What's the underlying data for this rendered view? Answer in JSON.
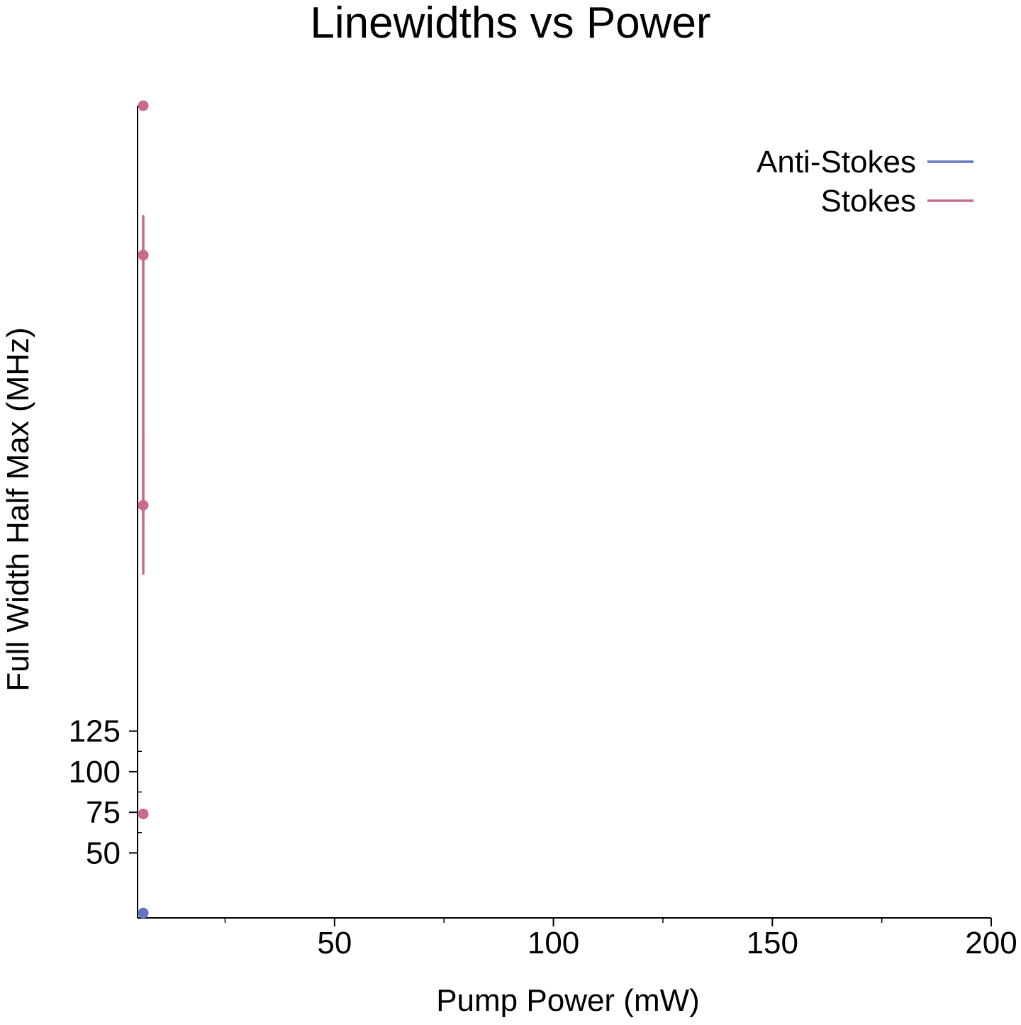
{
  "chart_data": {
    "type": "scatter",
    "title": "Linewidths vs Power",
    "xlabel": "Pump Power (mW)",
    "ylabel": "Full Width Half Max (MHz)",
    "xlim": [
      5,
      200
    ],
    "ylim": [
      10,
      510
    ],
    "x_ticks": [
      {
        "value": 50,
        "label": "50"
      },
      {
        "value": 100,
        "label": "100"
      },
      {
        "value": 150,
        "label": "150"
      },
      {
        "value": 200,
        "label": "200"
      }
    ],
    "x_minor_ticks": [
      25,
      75,
      125,
      175
    ],
    "y_ticks": [
      {
        "value": 50,
        "label": "50"
      },
      {
        "value": 75,
        "label": "75"
      },
      {
        "value": 100,
        "label": "100"
      },
      {
        "value": 125,
        "label": "125"
      }
    ],
    "y_minor_ticks": [
      62.5,
      87.5,
      112.5
    ],
    "grid": false,
    "legend_position": "top-right",
    "series": [
      {
        "name": "Anti-Stokes",
        "color": "#6574c4",
        "points": [
          {
            "x": 6.3,
            "y": 13
          }
        ]
      },
      {
        "name": "Stokes",
        "color": "#c86a92",
        "points": [
          {
            "x": 6.3,
            "y": 74
          },
          {
            "x": 6.3,
            "y": 264,
            "err_low": 222,
            "err_high": 308
          },
          {
            "x": 6.3,
            "y": 418,
            "err_low": 254,
            "err_high": 442
          },
          {
            "x": 6.3,
            "y": 510
          }
        ]
      }
    ]
  }
}
